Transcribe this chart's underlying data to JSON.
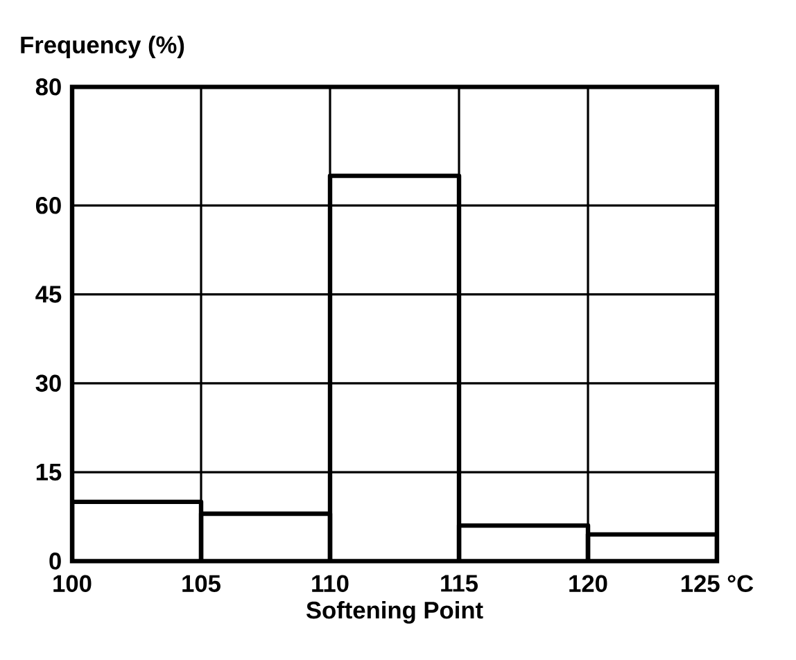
{
  "chart_data": {
    "type": "histogram",
    "ylabel": "Frequency (%)",
    "xlabel": "Softening Point",
    "bins": [
      100,
      105,
      110,
      115,
      120,
      125
    ],
    "values": [
      10,
      8,
      65,
      6,
      4.5
    ],
    "color": "#000000",
    "xlim": [
      100,
      125
    ],
    "xticks": [
      100,
      105,
      110,
      115,
      120,
      {
        "value": 125,
        "label": "125 °C"
      }
    ],
    "ylim": [
      0,
      80
    ],
    "yticks": [
      0,
      15,
      30,
      45,
      60,
      80
    ],
    "grid": true
  }
}
